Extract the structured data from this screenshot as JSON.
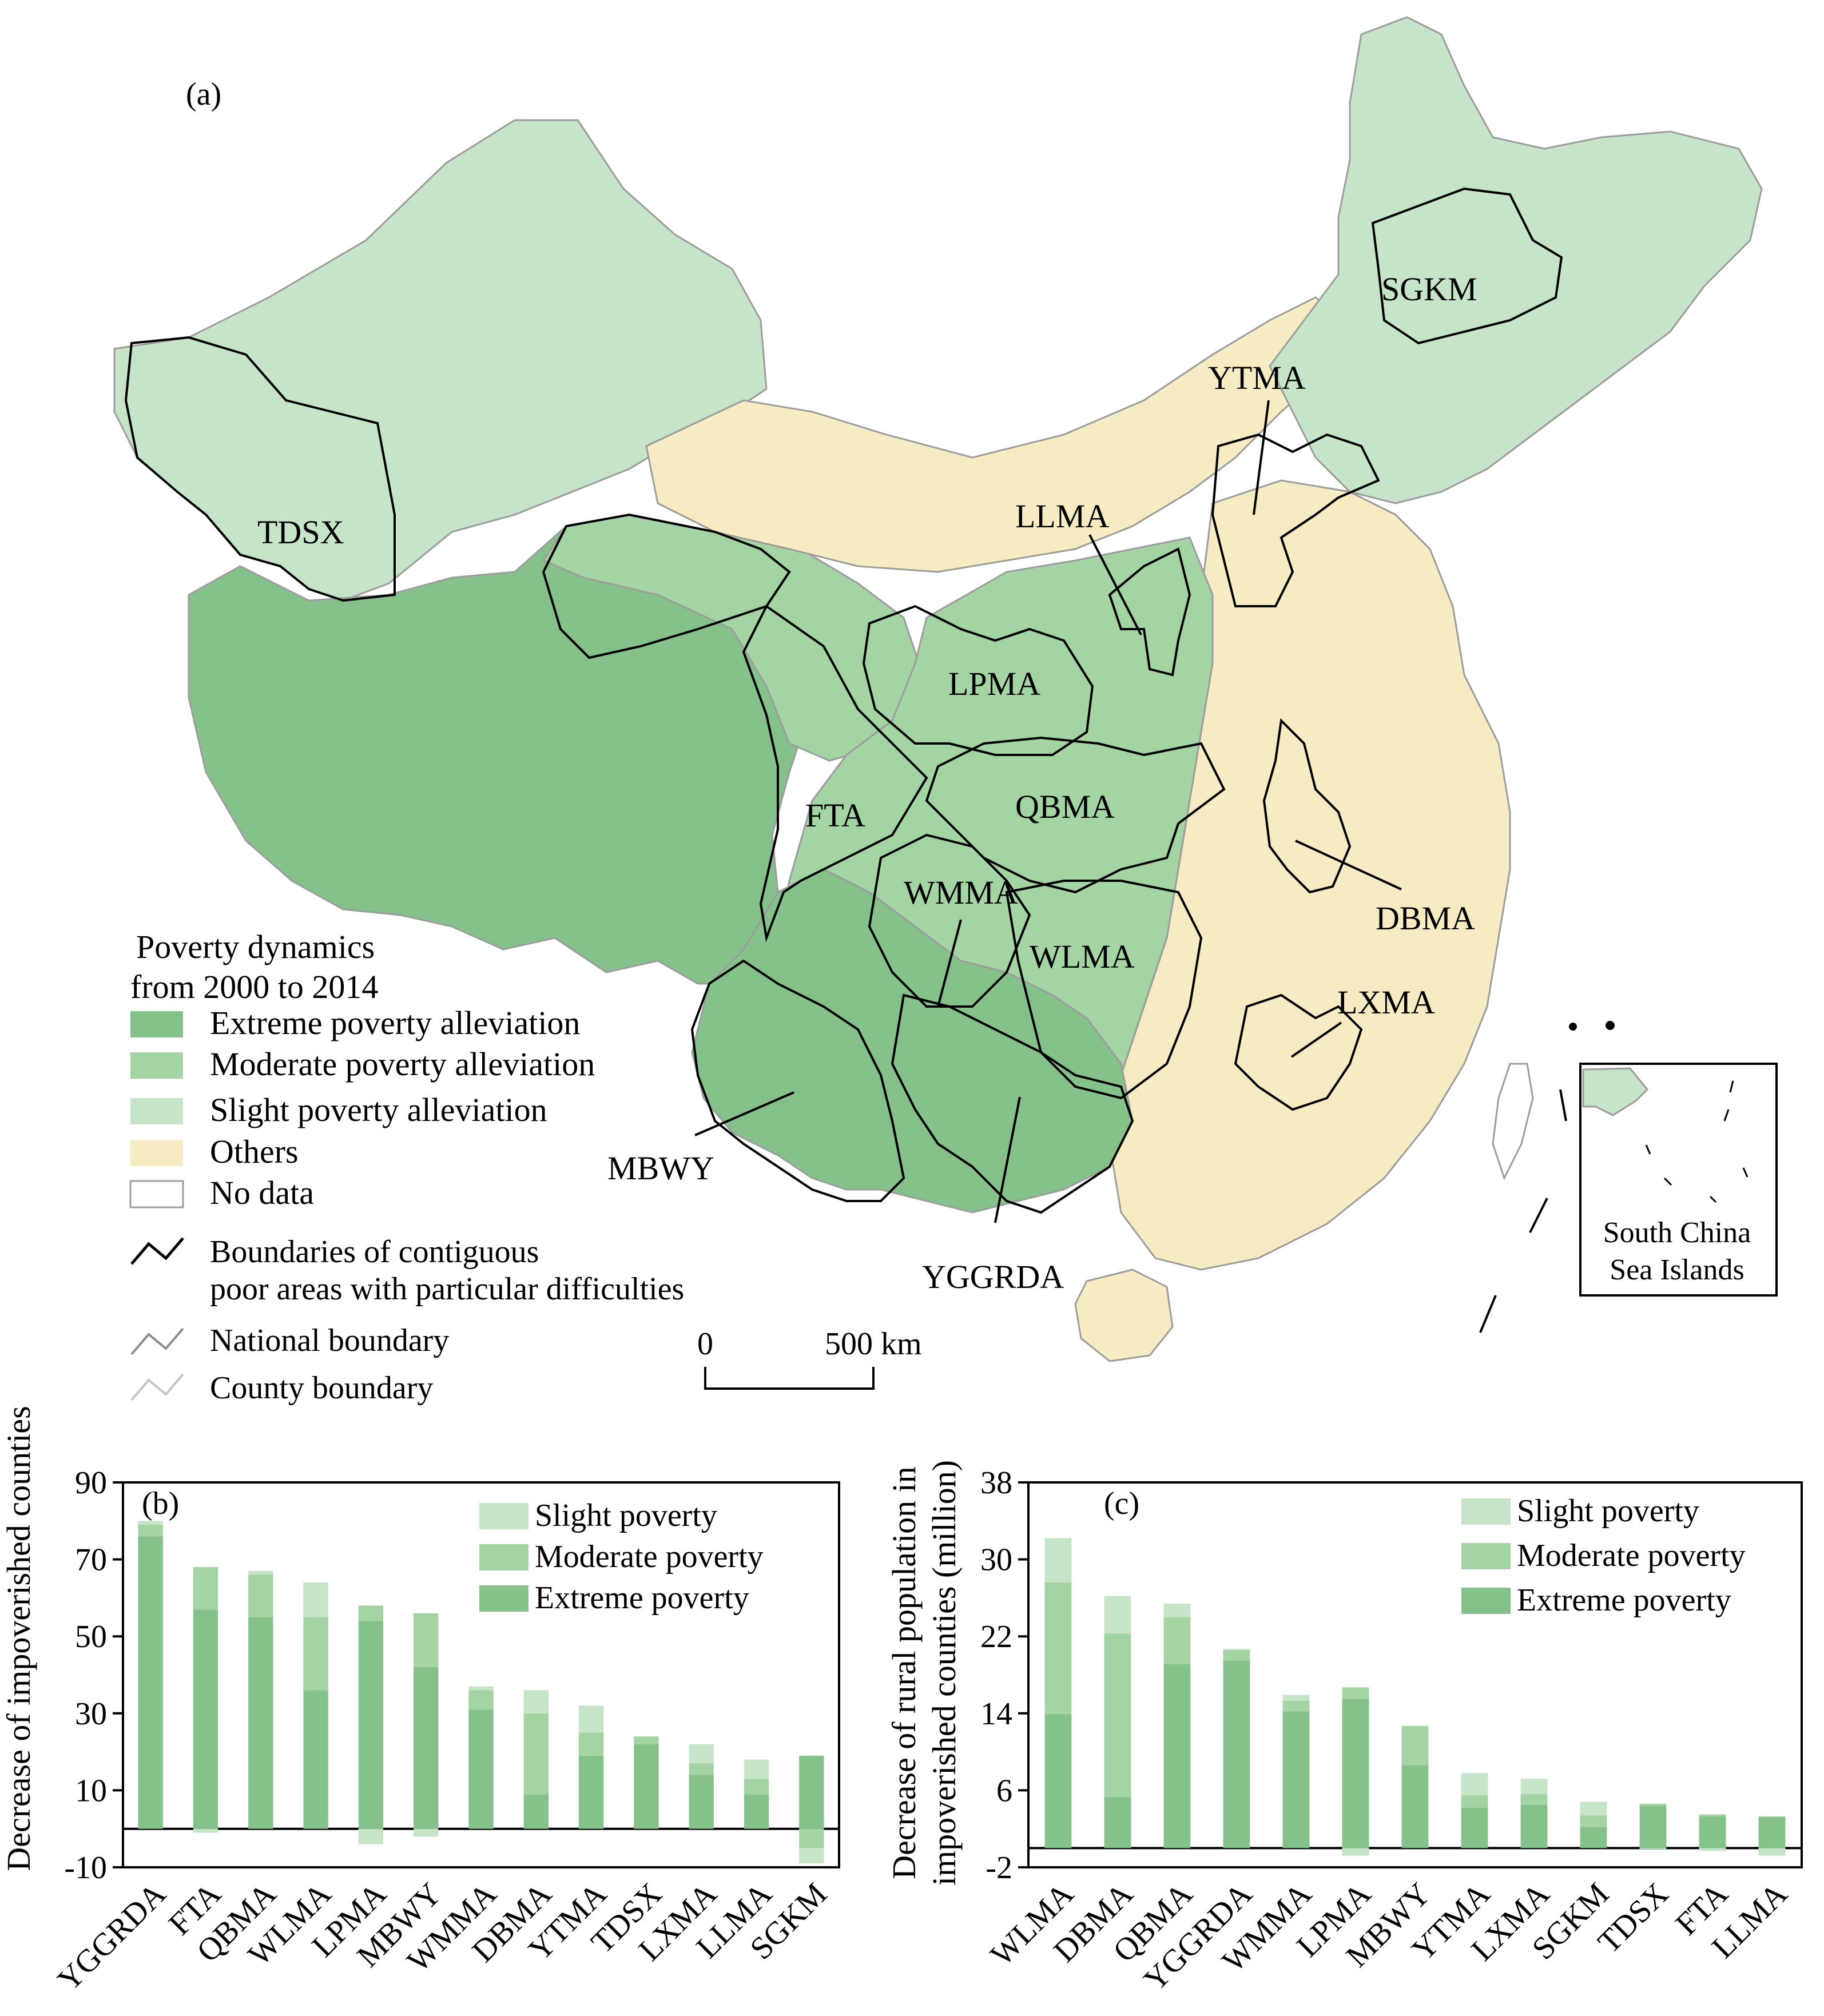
{
  "panel_a": {
    "label": "(a)",
    "legend_title_1": "Poverty dynamics",
    "legend_title_2": "from 2000 to 2014",
    "legend_items": [
      {
        "label": "Extreme poverty alleviation",
        "color": "#85c18a"
      },
      {
        "label": "Moderate poverty alleviation",
        "color": "#a4d3a4"
      },
      {
        "label": "Slight poverty alleviation",
        "color": "#c6e4c8"
      },
      {
        "label": "Others",
        "color": "#f7ebc3"
      },
      {
        "label": "No data",
        "color": "#ffffff"
      }
    ],
    "legend_lines": [
      {
        "label_1": "Boundaries of contiguous",
        "label_2": "poor areas with particular difficulties",
        "color": "#000000"
      },
      {
        "label_1": "National boundary",
        "color": "#8c8c8c"
      },
      {
        "label_1": "County boundary",
        "color": "#c4c4c4"
      }
    ],
    "areas": [
      "TDSX",
      "SGKM",
      "YTMA",
      "LLMA",
      "LPMA",
      "FTA",
      "QBMA",
      "WMMA",
      "WLMA",
      "DBMA",
      "LXMA",
      "MBWY",
      "YGGRDA"
    ],
    "scale_zero": "0",
    "scale_500": "500 km",
    "inset_label_1": "South China",
    "inset_label_2": "Sea Islands"
  },
  "chart_data": [
    {
      "type": "bar",
      "panel": "(b)",
      "ylabel": "Decrease of  impoverished counties",
      "ylim": [
        -10,
        90
      ],
      "yticks": [
        -10,
        10,
        30,
        50,
        70,
        90
      ],
      "categories": [
        "YGGRDA",
        "FTA",
        "QBMA",
        "WLMA",
        "LPMA",
        "MBWY",
        "WMMA",
        "DBMA",
        "YTMA",
        "TDSX",
        "LXMA",
        "LLMA",
        "SGKM"
      ],
      "series": [
        {
          "name": "Extreme poverty",
          "values": [
            76,
            57,
            55,
            36,
            54,
            42,
            31,
            9,
            19,
            22,
            14,
            9,
            19
          ]
        },
        {
          "name": "Moderate poverty",
          "values": [
            3,
            11,
            11,
            19,
            4,
            14,
            5,
            21,
            6,
            2,
            3,
            4,
            -5
          ]
        },
        {
          "name": "Slight poverty",
          "values": [
            1,
            -1,
            1,
            9,
            -4,
            -2,
            1,
            6,
            7,
            0,
            5,
            5,
            -4
          ]
        }
      ]
    },
    {
      "type": "bar",
      "panel": "(c)",
      "ylabel": "Decrease of rural population in impoverished counties (million)",
      "ylim": [
        -2,
        38
      ],
      "yticks": [
        -2,
        6,
        14,
        22,
        30,
        38
      ],
      "categories": [
        "WLMA",
        "DBMA",
        "QBMA",
        "YGGRDA",
        "WMMA",
        "LPMA",
        "MBWY",
        "YTMA",
        "LXMA",
        "SGKM",
        "TDSX",
        "FTA",
        "LLMA"
      ],
      "series": [
        {
          "name": "Extreme poverty",
          "values": [
            13.9,
            5.3,
            19.1,
            19.5,
            14.2,
            15.5,
            8.6,
            4.2,
            4.5,
            2.2,
            4.4,
            3.3,
            3.2
          ]
        },
        {
          "name": "Moderate poverty",
          "values": [
            13.7,
            17.0,
            4.9,
            1.1,
            1.1,
            1.2,
            4.1,
            1.3,
            1.1,
            1.2,
            0.2,
            0.2,
            0.1
          ]
        },
        {
          "name": "Slight poverty",
          "values": [
            4.6,
            3.9,
            1.4,
            0.1,
            0.6,
            -0.8,
            0.0,
            2.3,
            1.6,
            1.4,
            -0.1,
            -0.3,
            -0.8
          ]
        }
      ]
    }
  ]
}
